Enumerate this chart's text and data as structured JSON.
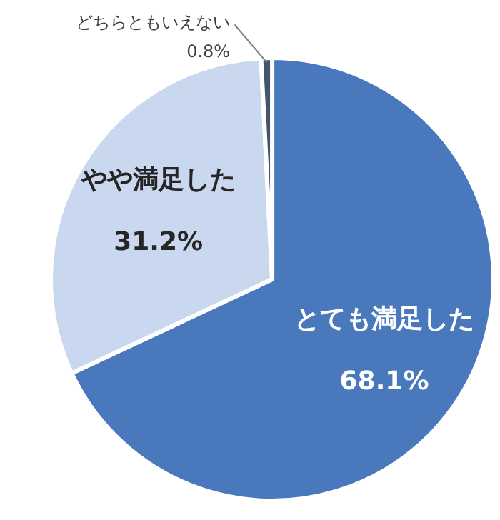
{
  "chart_data": {
    "type": "pie",
    "categories": [
      "とても満足した",
      "やや満足した",
      "どちらともいえない"
    ],
    "values": [
      68.1,
      31.2,
      0.8
    ],
    "value_labels": [
      "68.1%",
      "31.2%",
      "0.8%"
    ],
    "colors": [
      "#4a78bc",
      "#c9d8ef",
      "#44546a"
    ]
  }
}
